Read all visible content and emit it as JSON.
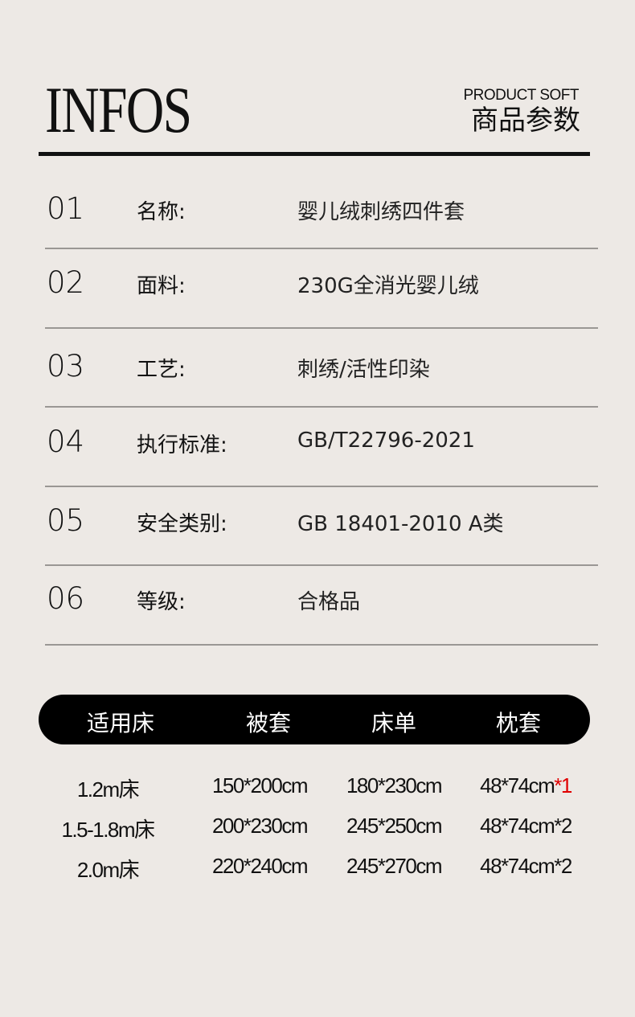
{
  "header": {
    "title": "INFOS",
    "subtitle_en": "PRODUCT SOFT",
    "subtitle_cn": "商品参数"
  },
  "specs": [
    {
      "num": "01",
      "label": "名称:",
      "value": "婴儿绒刺绣四件套"
    },
    {
      "num": "02",
      "label": "面料:",
      "value": "230G全消光婴儿绒"
    },
    {
      "num": "03",
      "label": "工艺:",
      "value": "刺绣/活性印染"
    },
    {
      "num": "04",
      "label": "执行标准:",
      "value": "GB/T22796-2021"
    },
    {
      "num": "05",
      "label": "安全类别:",
      "value": "GB 18401-2010 A类"
    },
    {
      "num": "06",
      "label": "等级:",
      "value": "合格品"
    }
  ],
  "size_table": {
    "headers": [
      "适用床",
      "被套",
      "床单",
      "枕套"
    ],
    "rows": [
      {
        "bed": "1.2m床",
        "duvet": "150*200cm",
        "sheet": "180*230cm",
        "pillow": "48*74cm",
        "pillow_qty": "*1"
      },
      {
        "bed": "1.5-1.8m床",
        "duvet": "200*230cm",
        "sheet": "245*250cm",
        "pillow": "48*74cm",
        "pillow_qty": "*2"
      },
      {
        "bed": "2.0m床",
        "duvet": "220*240cm",
        "sheet": "245*270cm",
        "pillow": "48*74cm",
        "pillow_qty": "*2"
      }
    ]
  },
  "colors": {
    "background": "#ede9e5",
    "highlight": "#e00000"
  }
}
